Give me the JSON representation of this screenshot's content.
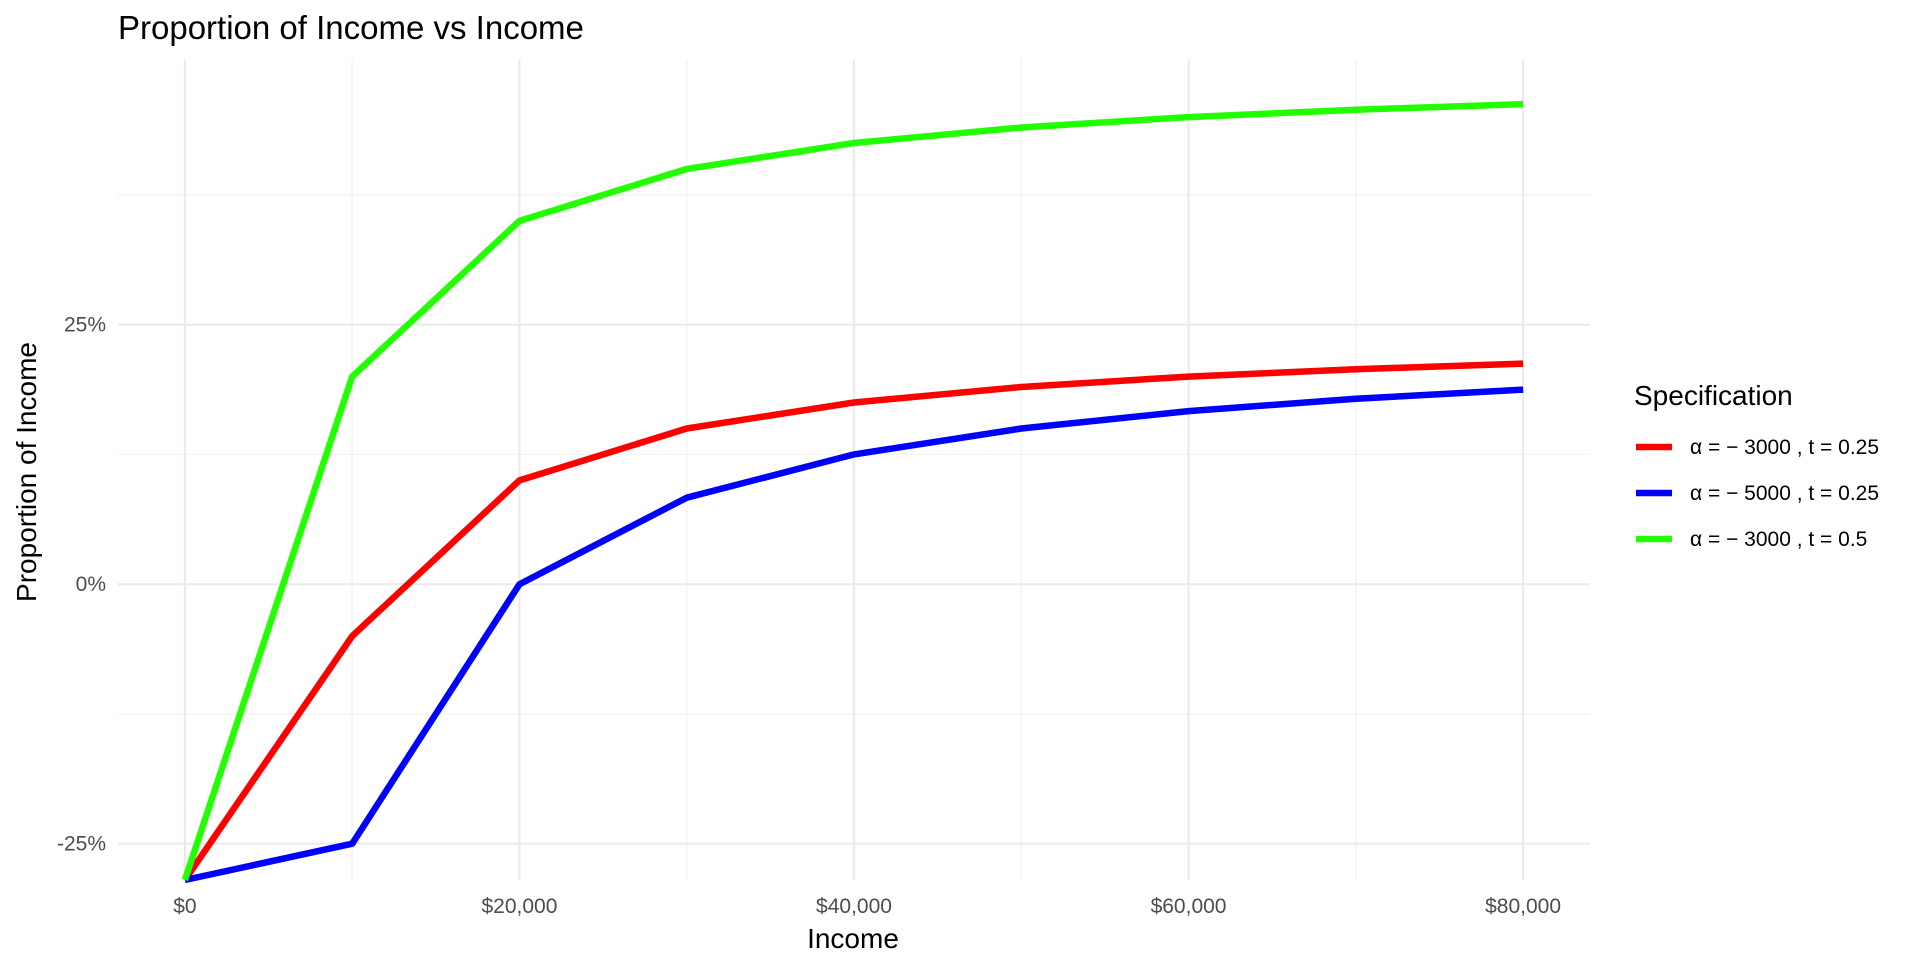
{
  "chart_data": {
    "type": "line",
    "title": "Proportion of Income vs Income",
    "xlabel": "Income",
    "ylabel": "Proportion of Income",
    "x": [
      0,
      10000,
      20000,
      30000,
      40000,
      50000,
      60000,
      70000,
      80000
    ],
    "xlim": [
      -4000,
      84000
    ],
    "ylim": [
      -28.5,
      50.5
    ],
    "x_ticks": [
      0,
      20000,
      40000,
      60000,
      80000
    ],
    "x_tick_labels": [
      "$0",
      "$20,000",
      "$40,000",
      "$60,000",
      "$80,000"
    ],
    "x_minor_ticks": [
      10000,
      30000,
      50000,
      70000
    ],
    "y_ticks": [
      -25,
      0,
      25
    ],
    "y_tick_labels": [
      "-25%",
      "0%",
      "25%"
    ],
    "y_minor_ticks": [
      -12.5,
      12.5,
      37.5
    ],
    "grid": true,
    "legend_title": "Specification",
    "legend_position": "right",
    "series": [
      {
        "name": "α = − 3000 ,  t = 0.25",
        "color": "#ff0000",
        "values": [
          -28.5,
          -5,
          10,
          15,
          17.5,
          19,
          20,
          20.71,
          21.25
        ]
      },
      {
        "name": "α = − 5000 ,  t = 0.25",
        "color": "#0000ff",
        "values": [
          -28.5,
          -25,
          0,
          8.33,
          12.5,
          15,
          16.67,
          17.86,
          18.75
        ]
      },
      {
        "name": "α = − 3000 ,  t = 0.5",
        "color": "#22ff00",
        "values": [
          -28.5,
          20,
          35,
          40,
          42.5,
          44,
          45,
          45.71,
          46.25
        ]
      }
    ]
  }
}
